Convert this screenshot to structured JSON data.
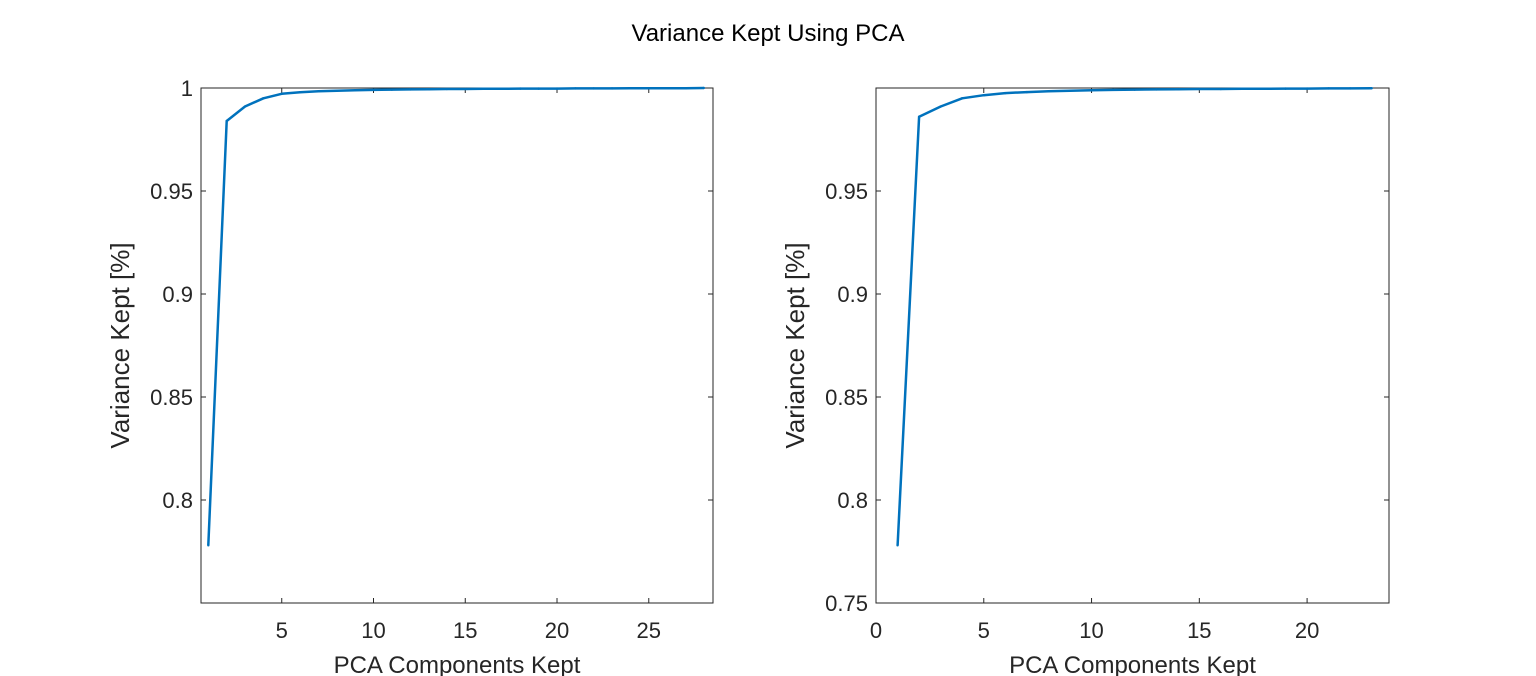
{
  "figure": {
    "title": "Variance Kept Using PCA"
  },
  "colors": {
    "line": "#0072BD",
    "axis": "#262626",
    "background": "#ffffff"
  },
  "chart_data": [
    {
      "type": "line",
      "xlabel": "PCA Components Kept",
      "ylabel": "Variance Kept [%]",
      "xlim": [
        0.6,
        28.5
      ],
      "ylim": [
        0.75,
        1.0
      ],
      "xticks": [
        5,
        10,
        15,
        20,
        25
      ],
      "xtick_labels": [
        "5",
        "10",
        "15",
        "20",
        "25"
      ],
      "yticks": [
        0.8,
        0.85,
        0.9,
        0.95,
        1.0
      ],
      "ytick_labels": [
        "0.8",
        "0.85",
        "0.9",
        "0.95",
        "1"
      ],
      "grid": false,
      "series": [
        {
          "x": [
            1,
            2,
            3,
            4,
            5,
            6,
            7,
            8,
            9,
            10,
            11,
            12,
            13,
            14,
            15,
            16,
            17,
            18,
            19,
            20,
            21,
            22,
            23,
            24,
            25,
            26,
            27,
            28
          ],
          "values": [
            0.778,
            0.984,
            0.991,
            0.995,
            0.9972,
            0.9979,
            0.9984,
            0.9987,
            0.9989,
            0.9991,
            0.9992,
            0.9993,
            0.9994,
            0.9995,
            0.9995,
            0.9996,
            0.9996,
            0.9997,
            0.9997,
            0.9997,
            0.9998,
            0.9998,
            0.9998,
            0.9999,
            0.9999,
            0.9999,
            0.9999,
            1.0
          ]
        }
      ]
    },
    {
      "type": "line",
      "xlabel": "PCA Components Kept",
      "ylabel": "Variance Kept [%]",
      "xlim": [
        0,
        23.8
      ],
      "ylim": [
        0.75,
        1.0
      ],
      "xticks": [
        0,
        5,
        10,
        15,
        20
      ],
      "xtick_labels": [
        "0",
        "5",
        "10",
        "15",
        "20"
      ],
      "yticks": [
        0.75,
        0.8,
        0.85,
        0.9,
        0.95
      ],
      "ytick_labels": [
        "0.75",
        "0.8",
        "0.85",
        "0.9",
        "0.95"
      ],
      "grid": false,
      "series": [
        {
          "x": [
            1,
            2,
            3,
            4,
            5,
            6,
            7,
            8,
            9,
            10,
            11,
            12,
            13,
            14,
            15,
            16,
            17,
            18,
            19,
            20,
            21,
            22,
            23
          ],
          "values": [
            0.778,
            0.986,
            0.991,
            0.995,
            0.9965,
            0.9975,
            0.998,
            0.9984,
            0.9987,
            0.9989,
            0.9991,
            0.9992,
            0.9993,
            0.9994,
            0.9995,
            0.9995,
            0.9996,
            0.9996,
            0.9997,
            0.9997,
            0.9998,
            0.9998,
            0.9999
          ]
        }
      ]
    }
  ]
}
